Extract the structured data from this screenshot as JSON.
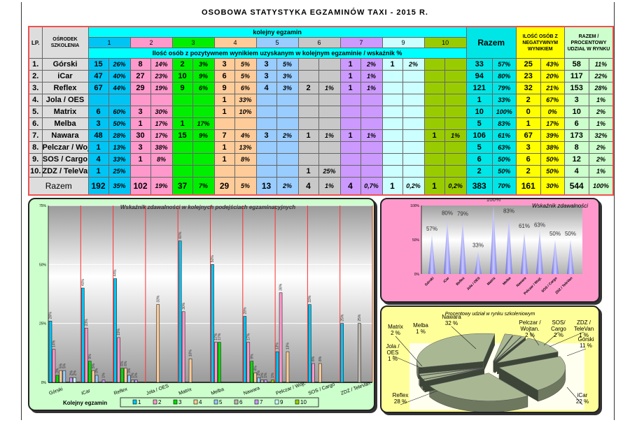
{
  "title": "OSOBOWA STATYSTYKA EGZAMINÓW TAXI  - 2015 R.",
  "table": {
    "h_lp": "LP.",
    "h_center": "OŚRODEK SZKOLENIA",
    "h_exam": "kolejny egzamin",
    "h_sub": "Ilość osób z pozytywnem wynikiem uzyskanym w kolejnym egzaminie / wskaźnik %",
    "h_razem": "Razem",
    "h_neg": "ILOŚĆ OSÓB Z NEGATYWNYM WYNIKIEM",
    "h_market": "RAZEM / PROCENTOWY UDZIAŁ W RYNKU",
    "exam_numbers": [
      "1",
      "2",
      "3",
      "4",
      "5",
      "6",
      "7",
      "9",
      "10"
    ],
    "exam_colors": [
      "#00c4f4",
      "#ff99cc",
      "#00ee00",
      "#ffcc99",
      "#99ccff",
      "#c8c8c8",
      "#cc99ff",
      "#ccffff",
      "#99cc00"
    ],
    "razem_color": "#00e6e6",
    "neg_color": "#ffff00",
    "market_color": "#ccffcc",
    "rows": [
      {
        "lp": "1.",
        "name": "Górski",
        "cells": [
          [
            "15",
            "26%"
          ],
          [
            "8",
            "14%"
          ],
          [
            "2",
            "3%"
          ],
          [
            "3",
            "5%"
          ],
          [
            "3",
            "5%"
          ],
          [
            "",
            ""
          ],
          [
            "1",
            "2%"
          ],
          [
            "1",
            "2%"
          ],
          [
            "",
            ""
          ]
        ],
        "razem": [
          "33",
          "57%"
        ],
        "neg": [
          "25",
          "43%"
        ],
        "market": [
          "58",
          "11%"
        ]
      },
      {
        "lp": "2.",
        "name": "iCar",
        "cells": [
          [
            "47",
            "40%"
          ],
          [
            "27",
            "23%"
          ],
          [
            "10",
            "9%"
          ],
          [
            "6",
            "5%"
          ],
          [
            "3",
            "3%"
          ],
          [
            "",
            ""
          ],
          [
            "1",
            "1%"
          ],
          [
            "",
            ""
          ],
          [
            "",
            ""
          ]
        ],
        "razem": [
          "94",
          "80%"
        ],
        "neg": [
          "23",
          "20%"
        ],
        "market": [
          "117",
          "22%"
        ]
      },
      {
        "lp": "3.",
        "name": "Reflex",
        "cells": [
          [
            "67",
            "44%"
          ],
          [
            "29",
            "19%"
          ],
          [
            "9",
            "6%"
          ],
          [
            "9",
            "6%"
          ],
          [
            "4",
            "3%"
          ],
          [
            "2",
            "1%"
          ],
          [
            "1",
            "1%"
          ],
          [
            "",
            ""
          ],
          [
            "",
            ""
          ]
        ],
        "razem": [
          "121",
          "79%"
        ],
        "neg": [
          "32",
          "21%"
        ],
        "market": [
          "153",
          "28%"
        ]
      },
      {
        "lp": "4.",
        "name": "Jola / OES",
        "cells": [
          [
            "",
            ""
          ],
          [
            "",
            ""
          ],
          [
            "",
            ""
          ],
          [
            "1",
            "33%"
          ],
          [
            "",
            ""
          ],
          [
            "",
            ""
          ],
          [
            "",
            ""
          ],
          [
            "",
            ""
          ],
          [
            "",
            ""
          ]
        ],
        "razem": [
          "1",
          "33%"
        ],
        "neg": [
          "2",
          "67%"
        ],
        "market": [
          "3",
          "1%"
        ]
      },
      {
        "lp": "5.",
        "name": "Matrix",
        "cells": [
          [
            "6",
            "60%"
          ],
          [
            "3",
            "30%"
          ],
          [
            "",
            ""
          ],
          [
            "1",
            "10%"
          ],
          [
            "",
            ""
          ],
          [
            "",
            ""
          ],
          [
            "",
            ""
          ],
          [
            "",
            ""
          ],
          [
            "",
            ""
          ]
        ],
        "razem": [
          "10",
          "100%"
        ],
        "neg": [
          "0",
          "0%"
        ],
        "market": [
          "10",
          "2%"
        ]
      },
      {
        "lp": "6.",
        "name": "Melba",
        "cells": [
          [
            "3",
            "50%"
          ],
          [
            "1",
            "17%"
          ],
          [
            "1",
            "17%"
          ],
          [
            "",
            ""
          ],
          [
            "",
            ""
          ],
          [
            "",
            ""
          ],
          [
            "",
            ""
          ],
          [
            "",
            ""
          ],
          [
            "",
            ""
          ]
        ],
        "razem": [
          "5",
          "83%"
        ],
        "neg": [
          "1",
          "17%"
        ],
        "market": [
          "6",
          "1%"
        ]
      },
      {
        "lp": "7.",
        "name": "Nawara",
        "cells": [
          [
            "48",
            "28%"
          ],
          [
            "30",
            "17%"
          ],
          [
            "15",
            "9%"
          ],
          [
            "7",
            "4%"
          ],
          [
            "3",
            "2%"
          ],
          [
            "1",
            "1%"
          ],
          [
            "1",
            "1%"
          ],
          [
            "",
            ""
          ],
          [
            "1",
            "1%"
          ]
        ],
        "razem": [
          "106",
          "61%"
        ],
        "neg": [
          "67",
          "39%"
        ],
        "market": [
          "173",
          "32%"
        ]
      },
      {
        "lp": "8.",
        "name": "Pelczar / Wojt.",
        "cells": [
          [
            "1",
            "13%"
          ],
          [
            "3",
            "38%"
          ],
          [
            "",
            ""
          ],
          [
            "1",
            "13%"
          ],
          [
            "",
            ""
          ],
          [
            "",
            ""
          ],
          [
            "",
            ""
          ],
          [
            "",
            ""
          ],
          [
            "",
            ""
          ]
        ],
        "razem": [
          "5",
          "63%"
        ],
        "neg": [
          "3",
          "38%"
        ],
        "market": [
          "8",
          "2%"
        ]
      },
      {
        "lp": "9.",
        "name": "SOS / Cargo",
        "cells": [
          [
            "4",
            "33%"
          ],
          [
            "1",
            "8%"
          ],
          [
            "",
            ""
          ],
          [
            "1",
            "8%"
          ],
          [
            "",
            ""
          ],
          [
            "",
            ""
          ],
          [
            "",
            ""
          ],
          [
            "",
            ""
          ],
          [
            "",
            ""
          ]
        ],
        "razem": [
          "6",
          "50%"
        ],
        "neg": [
          "6",
          "50%"
        ],
        "market": [
          "12",
          "2%"
        ]
      },
      {
        "lp": "10.",
        "name": "ZDZ / TeleVan",
        "cells": [
          [
            "1",
            "25%"
          ],
          [
            "",
            ""
          ],
          [
            "",
            ""
          ],
          [
            "",
            ""
          ],
          [
            "",
            ""
          ],
          [
            "1",
            "25%"
          ],
          [
            "",
            ""
          ],
          [
            "",
            ""
          ],
          [
            "",
            ""
          ]
        ],
        "razem": [
          "2",
          "50%"
        ],
        "neg": [
          "2",
          "50%"
        ],
        "market": [
          "4",
          "1%"
        ]
      }
    ],
    "total": {
      "name": "Razem",
      "cells": [
        [
          "192",
          "35%"
        ],
        [
          "102",
          "19%"
        ],
        [
          "37",
          "7%"
        ],
        [
          "29",
          "5%"
        ],
        [
          "13",
          "2%"
        ],
        [
          "4",
          "1%"
        ],
        [
          "4",
          "0,7%"
        ],
        [
          "1",
          "0,2%"
        ],
        [
          "1",
          "0,2%"
        ]
      ],
      "razem": [
        "383",
        "70%"
      ],
      "neg": [
        "161",
        "30%"
      ],
      "market": [
        "544",
        "100%"
      ]
    }
  },
  "chart_data": [
    {
      "type": "bar",
      "title": "Wskaźnik zdawalności w kolejnych podejściach egzaminacyjnych",
      "categories": [
        "Górski",
        "iCar",
        "Reflex",
        "Jola / OES",
        "Matrix",
        "Melba",
        "Nawara",
        "Pelczar / Wojt.",
        "SOS / Cargo",
        "ZDZ / TeleVan"
      ],
      "ylim": [
        0,
        75
      ],
      "yticks": [
        "0%",
        "25%",
        "50%",
        "75%"
      ],
      "legend": "bottom",
      "legend_title": "Kolejny egzamin",
      "grid": true,
      "series": [
        {
          "name": "1",
          "color": "#00c4f4",
          "values": [
            26,
            40,
            44,
            null,
            60,
            50,
            28,
            13,
            33,
            25
          ]
        },
        {
          "name": "2",
          "color": "#ff99cc",
          "values": [
            14,
            23,
            19,
            null,
            30,
            17,
            17,
            38,
            8,
            null
          ]
        },
        {
          "name": "3",
          "color": "#00dd00",
          "values": [
            3,
            9,
            6,
            null,
            null,
            17,
            9,
            null,
            null,
            null
          ]
        },
        {
          "name": "4",
          "color": "#ffcc99",
          "values": [
            5,
            5,
            6,
            33,
            10,
            null,
            4,
            13,
            8,
            null
          ]
        },
        {
          "name": "5",
          "color": "#99ccff",
          "values": [
            5,
            3,
            3,
            null,
            null,
            null,
            2,
            null,
            null,
            null
          ]
        },
        {
          "name": "6",
          "color": "#c0b8b0",
          "values": [
            null,
            null,
            1,
            null,
            null,
            null,
            1,
            null,
            null,
            25
          ]
        },
        {
          "name": "7",
          "color": "#cc99ff",
          "values": [
            2,
            1,
            1,
            null,
            null,
            null,
            1,
            null,
            null,
            null
          ]
        },
        {
          "name": "9",
          "color": "#ccffff",
          "values": [
            2,
            null,
            null,
            null,
            null,
            null,
            null,
            null,
            null,
            null
          ]
        },
        {
          "name": "10",
          "color": "#99cc00",
          "values": [
            null,
            null,
            null,
            null,
            null,
            null,
            1,
            null,
            null,
            null
          ]
        }
      ]
    },
    {
      "type": "bar",
      "title": "Wskaźnik  zdawalności",
      "categories": [
        "Górski",
        "iCar",
        "Reflex",
        "Jola / OES",
        "Matrix",
        "Melba",
        "Nawara",
        "Pelczar / Wojt.",
        "SOS / Cargo",
        "ZDZ / TeleVan"
      ],
      "values": [
        57,
        80,
        79,
        33,
        100,
        83,
        61,
        63,
        50,
        50
      ],
      "ylim": [
        0,
        100
      ],
      "yticks": [
        "0%",
        "50%",
        "100%"
      ],
      "color": "#9999ff"
    },
    {
      "type": "pie",
      "title": "Procentowy  udział  w  rynku  szkoleniowym",
      "labels": [
        "Górski",
        "iCar",
        "Reflex",
        "Jola / OES",
        "Matrix",
        "Melba",
        "Nawara",
        "Pelczar / Wojtan.",
        "SOS/ Cargo",
        "ZDZ / TeleVan"
      ],
      "values": [
        11,
        22,
        28,
        1,
        2,
        1,
        32,
        2,
        2,
        1
      ],
      "value_labels": [
        "11 %",
        "22 %",
        "28 %",
        "1 %",
        "2 %",
        "1 %",
        "32 %",
        "2 %",
        "2 %",
        "1 %"
      ],
      "color": "#a9b893"
    }
  ]
}
